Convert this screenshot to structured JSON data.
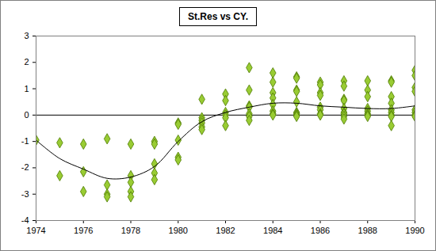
{
  "chart_data": {
    "type": "scatter",
    "title": "St.Res vs CY.",
    "xlim": [
      1974,
      1990
    ],
    "xticks": [
      1974,
      1976,
      1978,
      1980,
      1982,
      1984,
      1986,
      1988,
      1990
    ],
    "ylim": [
      -4,
      3
    ],
    "yticks": [
      -4,
      -3,
      -2,
      -1,
      0,
      1,
      2,
      3
    ],
    "grid": false,
    "series": [
      {
        "type": "line",
        "color": "#000000",
        "line_style": "solid",
        "x": [
          1974,
          1990
        ],
        "values": [
          0,
          0
        ]
      },
      {
        "type": "scatter",
        "color": "#99cc33",
        "marker": "diamond",
        "x": [
          1974,
          1975,
          1975,
          1976,
          1976,
          1976,
          1977,
          1977,
          1977,
          1977,
          1978,
          1978,
          1978,
          1978,
          1978,
          1979,
          1979,
          1979,
          1979,
          1979,
          1980,
          1980,
          1980,
          1980,
          1980,
          1981,
          1981,
          1981,
          1981,
          1981,
          1981,
          1982,
          1982,
          1982,
          1982,
          1982,
          1982,
          1983,
          1983,
          1983,
          1983,
          1983,
          1983,
          1983,
          1984,
          1984,
          1984,
          1984,
          1984,
          1984,
          1984,
          1984,
          1985,
          1985,
          1985,
          1985,
          1985,
          1985,
          1985,
          1985,
          1985,
          1986,
          1986,
          1986,
          1986,
          1986,
          1986,
          1986,
          1986,
          1987,
          1987,
          1987,
          1987,
          1987,
          1987,
          1987,
          1987,
          1987,
          1988,
          1988,
          1988,
          1988,
          1988,
          1988,
          1988,
          1988,
          1989,
          1989,
          1989,
          1989,
          1989,
          1989,
          1989,
          1989,
          1989,
          1990,
          1990,
          1990,
          1990,
          1990,
          1990,
          1990,
          1990
        ],
        "values": [
          -0.95,
          -1.05,
          -2.3,
          -1.1,
          -2.15,
          -2.9,
          -0.9,
          -2.65,
          -3.0,
          -3.1,
          -1.1,
          -2.3,
          -2.55,
          -2.9,
          -3.1,
          -1.0,
          -1.1,
          -1.85,
          -2.2,
          -2.45,
          -0.3,
          -0.35,
          -0.95,
          -1.6,
          -1.7,
          0.6,
          -0.1,
          -0.2,
          -0.3,
          -0.45,
          -0.55,
          0.8,
          0.55,
          0.1,
          0.0,
          -0.1,
          -0.4,
          1.8,
          0.95,
          0.35,
          0.3,
          0.05,
          -0.05,
          -0.2,
          1.6,
          1.25,
          0.85,
          0.65,
          0.4,
          0.15,
          0.05,
          0.0,
          1.45,
          1.4,
          0.95,
          0.9,
          0.5,
          0.1,
          0.05,
          0.0,
          -0.05,
          1.25,
          1.15,
          0.85,
          0.75,
          0.3,
          0.2,
          0.05,
          0.0,
          1.3,
          1.1,
          0.6,
          0.55,
          0.25,
          0.1,
          0.05,
          -0.05,
          -0.15,
          1.3,
          0.95,
          0.7,
          0.25,
          0.15,
          0.05,
          0.0,
          -0.05,
          1.3,
          1.25,
          0.7,
          0.45,
          0.2,
          0.1,
          0.0,
          -0.05,
          -0.4,
          1.7,
          1.5,
          1.05,
          0.9,
          0.2,
          0.1,
          0.0,
          -0.05
        ]
      },
      {
        "type": "line",
        "color": "#000000",
        "line_style": "solid",
        "x": [
          1974,
          1975,
          1976,
          1977,
          1978,
          1979,
          1980,
          1981,
          1982,
          1983,
          1984,
          1985,
          1986,
          1987,
          1988,
          1989,
          1990
        ],
        "values": [
          -0.95,
          -1.65,
          -2.05,
          -2.4,
          -2.35,
          -1.95,
          -1.0,
          -0.25,
          0.1,
          0.3,
          0.45,
          0.45,
          0.35,
          0.3,
          0.25,
          0.25,
          0.35
        ]
      }
    ]
  }
}
